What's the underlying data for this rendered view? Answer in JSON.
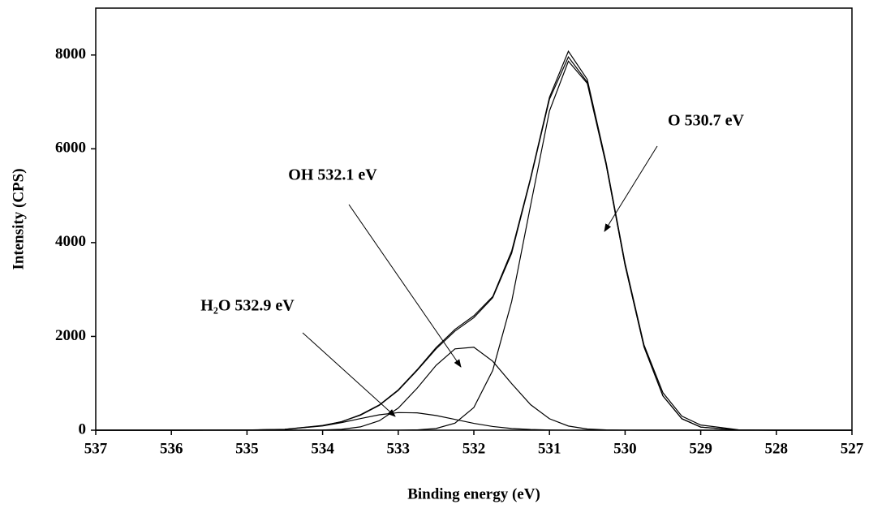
{
  "chart_data": {
    "type": "line",
    "xlabel": "Binding energy (eV)",
    "ylabel": "Intensity (CPS)",
    "x": [
      537,
      536,
      535,
      534.5,
      534,
      533.75,
      533.5,
      533.25,
      533,
      532.75,
      532.5,
      532.25,
      532,
      531.75,
      531.5,
      531.25,
      531,
      530.75,
      530.5,
      530.25,
      530,
      529.75,
      529.5,
      529.25,
      529,
      528.5,
      528,
      527
    ],
    "series": [
      {
        "color": "#000000",
        "values": [
          0,
          0,
          5,
          20,
          102,
          180,
          330,
          540,
          860,
          1290,
          1760,
          2150,
          2440,
          2850,
          3820,
          5380,
          7100,
          8080,
          7480,
          5700,
          3560,
          1820,
          800,
          300,
          110,
          10,
          0,
          0
        ]
      },
      {
        "color": "#000000",
        "values": [
          0,
          0,
          2,
          18,
          96,
          182,
          319,
          531,
          848,
          1274,
          1733,
          2113,
          2400,
          2826,
          3773,
          5351,
          7057,
          7958,
          7421,
          5659,
          3516,
          1778,
          732,
          245,
          66,
          3,
          0,
          0
        ]
      },
      {
        "color": "#000000",
        "values": [
          0,
          0,
          0,
          0,
          0,
          0,
          0,
          0,
          1,
          8,
          37,
          149,
          484,
          1277,
          2743,
          4791,
          6808,
          7868,
          7395,
          5653,
          3515,
          1778,
          732,
          245,
          66,
          3,
          0,
          0
        ]
      },
      {
        "color": "#000000",
        "values": [
          0,
          0,
          0,
          0,
          5,
          20,
          71,
          202,
          472,
          896,
          1382,
          1734,
          1770,
          1470,
          993,
          545,
          244,
          89,
          26,
          6,
          1,
          0,
          0,
          0,
          0,
          0,
          0,
          0
        ]
      },
      {
        "color": "#000000",
        "values": [
          0,
          0,
          2,
          18,
          91,
          162,
          248,
          329,
          375,
          370,
          314,
          230,
          146,
          79,
          37,
          15,
          5,
          1,
          0,
          0,
          0,
          0,
          0,
          0,
          0,
          0,
          0,
          0
        ]
      }
    ],
    "xlim": [
      537,
      527
    ],
    "xticks": [
      537,
      536,
      535,
      534,
      533,
      532,
      531,
      530,
      529,
      528,
      527
    ],
    "ylim": [
      0,
      9000
    ],
    "yticks": [
      0,
      2000,
      4000,
      6000,
      8000
    ],
    "annotations": [
      "O 530.7 eV",
      "OH 532.1 eV",
      "H₂O 532.9 eV"
    ]
  }
}
